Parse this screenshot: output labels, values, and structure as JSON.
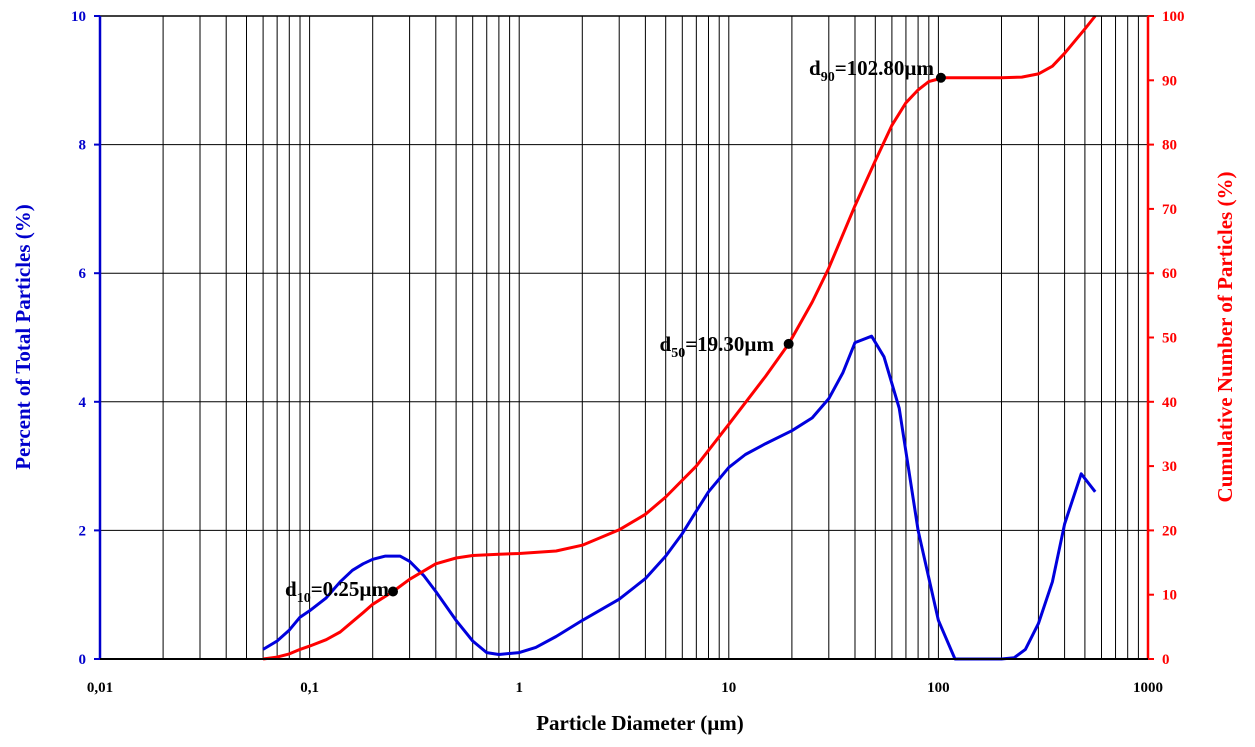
{
  "chart_data": {
    "type": "line",
    "x_scale": "log",
    "xlim": [
      0.01,
      1000
    ],
    "ylim_left": [
      0,
      10
    ],
    "ylim_right": [
      0,
      100
    ],
    "grid": true,
    "xlabel": "Particle Diameter (µm)",
    "ylabel_left": "Percent of Total Particles (%)",
    "ylabel_right": "Cumulative Number of Particles (%)",
    "x_ticks": [
      {
        "value": 0.01,
        "label": "0,01"
      },
      {
        "value": 0.1,
        "label": "0,1"
      },
      {
        "value": 1,
        "label": "1"
      },
      {
        "value": 10,
        "label": "10"
      },
      {
        "value": 100,
        "label": "100"
      },
      {
        "value": 1000,
        "label": "1000"
      }
    ],
    "y_left_ticks": [
      "0",
      "2",
      "4",
      "6",
      "8",
      "10"
    ],
    "y_right_ticks": [
      "0",
      "10",
      "20",
      "30",
      "40",
      "50",
      "60",
      "70",
      "80",
      "90",
      "100"
    ],
    "series": [
      {
        "axis": "left",
        "color": "#0000dd",
        "x": [
          0.06,
          0.07,
          0.08,
          0.09,
          0.1,
          0.12,
          0.14,
          0.16,
          0.18,
          0.2,
          0.23,
          0.27,
          0.3,
          0.35,
          0.4,
          0.5,
          0.6,
          0.7,
          0.8,
          1.0,
          1.2,
          1.5,
          2,
          3,
          4,
          5,
          6,
          7,
          8,
          10,
          12,
          15,
          20,
          25,
          30,
          35,
          40,
          48,
          55,
          65,
          80,
          100,
          120,
          150,
          200,
          230,
          260,
          300,
          350,
          400,
          480,
          560
        ],
        "y": [
          0.15,
          0.28,
          0.45,
          0.65,
          0.75,
          0.95,
          1.2,
          1.38,
          1.48,
          1.55,
          1.6,
          1.6,
          1.52,
          1.3,
          1.05,
          0.6,
          0.28,
          0.1,
          0.07,
          0.1,
          0.18,
          0.35,
          0.6,
          0.93,
          1.25,
          1.6,
          1.95,
          2.3,
          2.6,
          2.98,
          3.18,
          3.35,
          3.55,
          3.75,
          4.05,
          4.45,
          4.92,
          5.02,
          4.7,
          3.9,
          2.0,
          0.6,
          0.0,
          0.0,
          0.0,
          0.02,
          0.15,
          0.55,
          1.2,
          2.1,
          2.88,
          2.6
        ]
      },
      {
        "axis": "right",
        "color": "#ff0000",
        "x": [
          0.06,
          0.07,
          0.08,
          0.09,
          0.1,
          0.12,
          0.14,
          0.16,
          0.18,
          0.2,
          0.25,
          0.3,
          0.4,
          0.5,
          0.6,
          0.8,
          1,
          1.5,
          2,
          3,
          4,
          5,
          7,
          10,
          15,
          19.3,
          25,
          30,
          40,
          50,
          60,
          70,
          80,
          90,
          100,
          102.8,
          120,
          150,
          200,
          250,
          300,
          350,
          400,
          500,
          560
        ],
        "y": [
          0.0,
          0.3,
          0.8,
          1.5,
          2.0,
          3.0,
          4.2,
          5.8,
          7.2,
          8.5,
          10.5,
          12.4,
          14.8,
          15.7,
          16.1,
          16.3,
          16.4,
          16.8,
          17.7,
          20.1,
          22.5,
          25.2,
          30.0,
          36.5,
          44.0,
          49.0,
          55.5,
          60.8,
          70.5,
          77.5,
          83.0,
          86.5,
          88.5,
          89.8,
          90.2,
          90.4,
          90.4,
          90.4,
          90.4,
          90.5,
          91.0,
          92.2,
          94.2,
          98.0,
          100.0
        ]
      }
    ],
    "markers": [
      {
        "x": 0.25,
        "y_right": 10.5
      },
      {
        "x": 19.3,
        "y_right": 49.0
      },
      {
        "x": 102.8,
        "y_right": 90.4
      }
    ],
    "annotations": [
      {
        "main": "d",
        "sub": "10",
        "rest": "=0.25µm"
      },
      {
        "main": "d",
        "sub": "50",
        "rest": "=19.30µm"
      },
      {
        "main": "d",
        "sub": "90",
        "rest": "=102.80µm"
      }
    ],
    "colors": {
      "left_axis": "#0000cc",
      "right_axis": "#ff0000",
      "grid": "#000000"
    }
  }
}
